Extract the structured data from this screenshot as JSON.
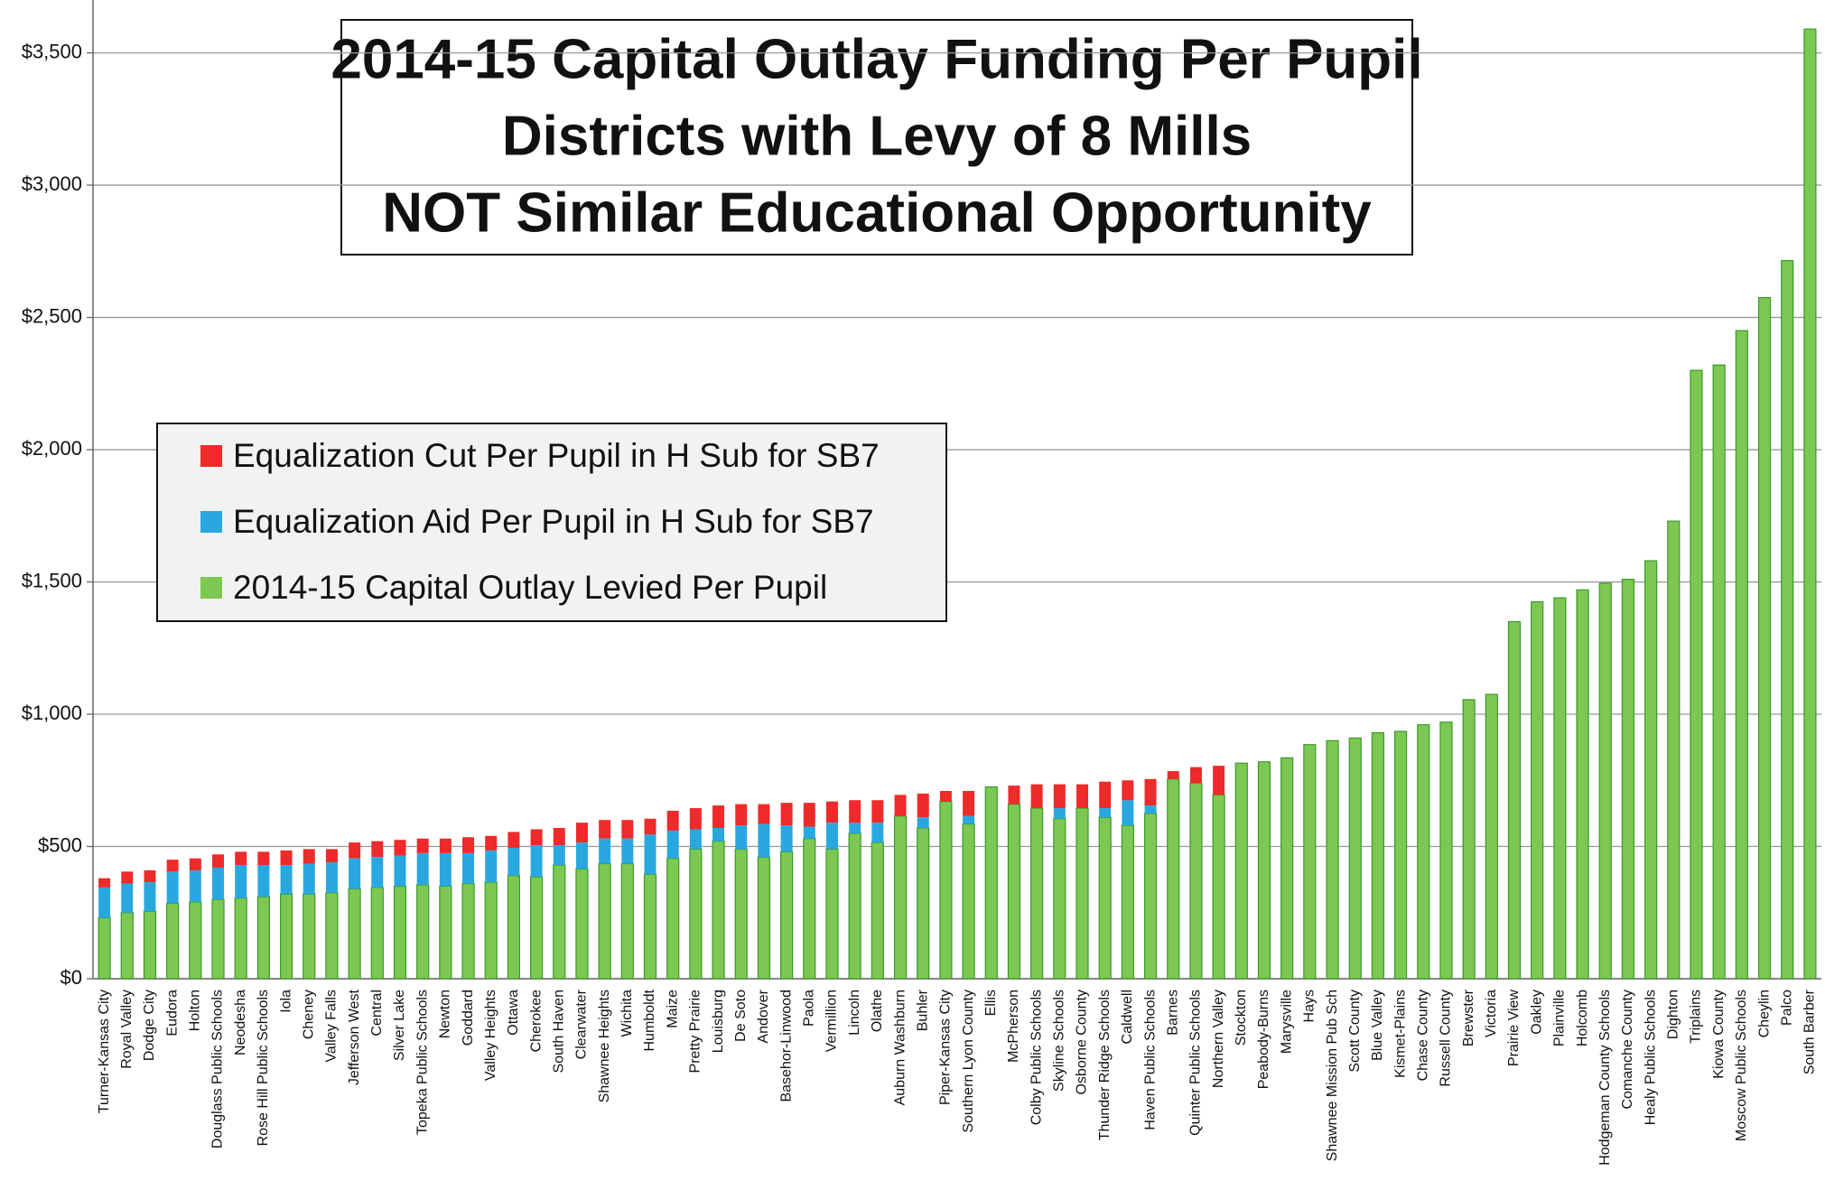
{
  "chart_data": {
    "type": "stacked_bar",
    "title": "2014-15 Capital Outlay Funding Per Pupil",
    "subtitles": [
      "Districts with Levy of 8 Mills",
      "NOT Similar Educational Opportunity"
    ],
    "categories": [
      "Turner-Kansas City",
      "Royal Valley",
      "Dodge City",
      "Eudora",
      "Holton",
      "Douglass Public Schools",
      "Neodesha",
      "Rose Hill Public Schools",
      "Iola",
      "Cheney",
      "Valley Falls",
      "Jefferson West",
      "Central",
      "Silver Lake",
      "Topeka Public Schools",
      "Newton",
      "Goddard",
      "Valley Heights",
      "Ottawa",
      "Cherokee",
      "South Haven",
      "Clearwater",
      "Shawnee Heights",
      "Wichita",
      "Humboldt",
      "Maize",
      "Pretty Prairie",
      "Louisburg",
      "De Soto",
      "Andover",
      "Basehor-Linwood",
      "Paola",
      "Vermillion",
      "Lincoln",
      "Olathe",
      "Auburn Washburn",
      "Buhler",
      "Piper-Kansas City",
      "Southern Lyon County",
      "Ellis",
      "McPherson",
      "Colby Public Schools",
      "Skyline Schools",
      "Osborne County",
      "Thunder Ridge Schools",
      "Caldwell",
      "Haven Public Schools",
      "Barnes",
      "Quinter Public Schools",
      "Northern Valley",
      "Stockton",
      "Peabody-Burns",
      "Marysville",
      "Hays",
      "Shawnee Mission Pub Sch",
      "Scott County",
      "Blue Valley",
      "Kismet-Plains",
      "Chase County",
      "Russell County",
      "Brewster",
      "Victoria",
      "Prairie View",
      "Oakley",
      "Plainville",
      "Holcomb",
      "Hodgeman County Schools",
      "Comanche County",
      "Healy Public Schools",
      "Dighton",
      "Triplains",
      "Kiowa County",
      "Moscow Public Schools",
      "Cheylin",
      "Palco",
      "South Barber"
    ],
    "series": [
      {
        "name": "2014-15 Capital Outlay Levied Per Pupil",
        "color": "#7dc852",
        "values": [
          230,
          250,
          255,
          285,
          290,
          300,
          305,
          310,
          320,
          320,
          325,
          340,
          345,
          350,
          355,
          350,
          360,
          365,
          390,
          385,
          430,
          415,
          435,
          435,
          395,
          455,
          490,
          520,
          490,
          460,
          480,
          530,
          490,
          550,
          515,
          615,
          570,
          670,
          585,
          725,
          660,
          645,
          605,
          645,
          610,
          580,
          625,
          755,
          740,
          695,
          815,
          820,
          835,
          885,
          900,
          910,
          930,
          935,
          960,
          970,
          1055,
          1075,
          1350,
          1425,
          1440,
          1470,
          1495,
          1510,
          1580,
          1730,
          2300,
          2320,
          2450,
          2575,
          2715,
          3590
        ]
      },
      {
        "name": "Equalization Aid Per Pupil in H Sub for SB7",
        "color": "#29a8e0",
        "values": [
          115,
          110,
          110,
          120,
          120,
          120,
          125,
          120,
          110,
          115,
          115,
          115,
          115,
          115,
          120,
          125,
          115,
          120,
          105,
          120,
          75,
          100,
          95,
          95,
          150,
          105,
          75,
          50,
          90,
          125,
          100,
          45,
          100,
          40,
          75,
          0,
          40,
          0,
          30,
          0,
          0,
          0,
          40,
          0,
          35,
          95,
          30,
          0,
          0,
          0,
          0,
          0,
          0,
          0,
          0,
          0,
          0,
          0,
          0,
          0,
          0,
          0,
          0,
          0,
          0,
          0,
          0,
          0,
          0,
          0,
          0,
          0,
          0,
          0,
          0,
          0
        ]
      },
      {
        "name": "Equalization Cut Per Pupil in H Sub for SB7",
        "color": "#ee2a2a",
        "values": [
          35,
          45,
          45,
          45,
          45,
          50,
          50,
          50,
          55,
          55,
          50,
          60,
          60,
          60,
          55,
          55,
          60,
          55,
          60,
          60,
          65,
          75,
          70,
          70,
          60,
          75,
          80,
          85,
          80,
          75,
          85,
          90,
          80,
          85,
          85,
          80,
          90,
          40,
          95,
          0,
          70,
          90,
          90,
          90,
          100,
          75,
          100,
          30,
          60,
          110,
          0,
          0,
          0,
          0,
          0,
          0,
          0,
          0,
          0,
          0,
          0,
          0,
          0,
          0,
          0,
          0,
          0,
          0,
          0,
          0,
          0,
          0,
          0,
          0,
          0,
          0
        ]
      }
    ],
    "ylim": [
      0,
      3700
    ],
    "yticks": [
      {
        "value": 0,
        "label": "$0"
      },
      {
        "value": 500,
        "label": "$500"
      },
      {
        "value": 1000,
        "label": "$1,000"
      },
      {
        "value": 1500,
        "label": "$1,500"
      },
      {
        "value": 2000,
        "label": "$2,000"
      },
      {
        "value": 2500,
        "label": "$2,500"
      },
      {
        "value": 3000,
        "label": "$3,000"
      },
      {
        "value": 3500,
        "label": "$3,500"
      }
    ],
    "grid": true
  }
}
